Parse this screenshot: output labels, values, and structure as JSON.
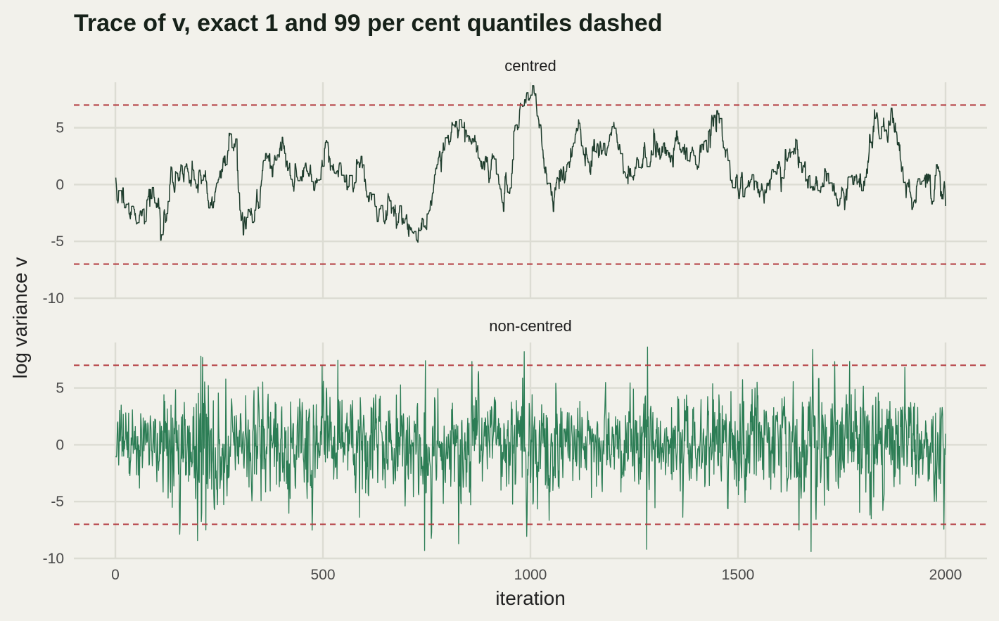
{
  "chart_data": {
    "type": "line",
    "title": "Trace of v, exact 1 and 99 per cent quantiles dashed",
    "xlabel": "iteration",
    "ylabel": "log variance v",
    "x_range": [
      1,
      2000
    ],
    "xlim": [
      -100,
      2100
    ],
    "x_ticks": [
      0,
      500,
      1000,
      1500,
      2000
    ],
    "y_ticks": [
      -10,
      -5,
      0,
      5
    ],
    "grid": true,
    "legend": "none",
    "quantile_lines": [
      -7,
      7
    ],
    "colors": {
      "background": "#f2f1eb",
      "grid": "#dcdcd3",
      "quantile_line": "#b3393e",
      "centred": "#1f3d2d",
      "non_centred": "#2c7d55"
    },
    "panels": [
      {
        "label": "centred",
        "ylim": [
          -10,
          9
        ],
        "color": "#1f3d2d",
        "trace_style": "slowly mixing random walk",
        "anchors": [
          [
            1,
            0.8
          ],
          [
            30,
            -2.2
          ],
          [
            55,
            -2.6
          ],
          [
            75,
            -2.1
          ],
          [
            90,
            0.8
          ],
          [
            110,
            -2.3
          ],
          [
            125,
            -2.3
          ],
          [
            145,
            0.5
          ],
          [
            175,
            1.5
          ],
          [
            205,
            0.8
          ],
          [
            230,
            -0.5
          ],
          [
            245,
            1.8
          ],
          [
            265,
            2.2
          ],
          [
            275,
            4.8
          ],
          [
            290,
            3.2
          ],
          [
            300,
            -1.8
          ],
          [
            325,
            -2.2
          ],
          [
            345,
            -2.1
          ],
          [
            360,
            2.0
          ],
          [
            385,
            3.0
          ],
          [
            410,
            1.6
          ],
          [
            430,
            -0.8
          ],
          [
            455,
            1.5
          ],
          [
            480,
            0.5
          ],
          [
            510,
            2.5
          ],
          [
            545,
            1.0
          ],
          [
            570,
            1.4
          ],
          [
            590,
            2.5
          ],
          [
            605,
            -0.6
          ],
          [
            620,
            -0.9
          ],
          [
            650,
            -1.5
          ],
          [
            680,
            -2.8
          ],
          [
            700,
            -3.0
          ],
          [
            730,
            -2.8
          ],
          [
            745,
            -2.4
          ],
          [
            755,
            -2.0
          ],
          [
            770,
            0.3
          ],
          [
            790,
            2.3
          ],
          [
            810,
            3.8
          ],
          [
            840,
            4.7
          ],
          [
            860,
            3.5
          ],
          [
            880,
            3.2
          ],
          [
            905,
            1.0
          ],
          [
            930,
            -0.2
          ],
          [
            950,
            1.2
          ],
          [
            965,
            5.5
          ],
          [
            985,
            7.5
          ],
          [
            1010,
            6.8
          ],
          [
            1025,
            4.0
          ],
          [
            1040,
            -0.5
          ],
          [
            1055,
            -1.5
          ],
          [
            1075,
            -0.3
          ],
          [
            1095,
            1.2
          ],
          [
            1110,
            4.2
          ],
          [
            1145,
            2.5
          ],
          [
            1180,
            3.5
          ],
          [
            1210,
            3.8
          ],
          [
            1240,
            1.5
          ],
          [
            1270,
            3.0
          ],
          [
            1300,
            3.2
          ],
          [
            1330,
            2.5
          ],
          [
            1360,
            3.8
          ],
          [
            1400,
            2.2
          ],
          [
            1425,
            4.5
          ],
          [
            1450,
            6.3
          ],
          [
            1468,
            4.5
          ],
          [
            1485,
            2.0
          ],
          [
            1500,
            0.3
          ],
          [
            1540,
            0.5
          ],
          [
            1580,
            0.1
          ],
          [
            1605,
            0.5
          ],
          [
            1625,
            2.8
          ],
          [
            1650,
            1.8
          ],
          [
            1680,
            0.8
          ],
          [
            1710,
            0.3
          ],
          [
            1745,
            -1.4
          ],
          [
            1775,
            0.5
          ],
          [
            1800,
            1.8
          ],
          [
            1830,
            3.5
          ],
          [
            1850,
            5.5
          ],
          [
            1870,
            3.8
          ],
          [
            1890,
            2.7
          ],
          [
            1905,
            0.3
          ],
          [
            1935,
            0.0
          ],
          [
            1965,
            -0.8
          ],
          [
            2000,
            -0.4
          ]
        ]
      },
      {
        "label": "non-centred",
        "ylim": [
          -10,
          9
        ],
        "color": "#2c7d55",
        "trace_style": "rapidly mixing, noisy around 0 (range about -9.3 to 8.4)",
        "volatility_profile": [
          [
            1,
            1.4
          ],
          [
            100,
            2.0
          ],
          [
            200,
            3.3
          ],
          [
            240,
            2.8
          ],
          [
            300,
            2.0
          ],
          [
            380,
            2.7
          ],
          [
            460,
            2.4
          ],
          [
            540,
            2.3
          ],
          [
            620,
            2.4
          ],
          [
            700,
            2.2
          ],
          [
            780,
            1.9
          ],
          [
            860,
            2.1
          ],
          [
            940,
            2.2
          ],
          [
            990,
            3.0
          ],
          [
            1060,
            2.1
          ],
          [
            1140,
            1.8
          ],
          [
            1220,
            2.0
          ],
          [
            1290,
            2.6
          ],
          [
            1360,
            2.2
          ],
          [
            1440,
            2.5
          ],
          [
            1520,
            2.7
          ],
          [
            1600,
            2.6
          ],
          [
            1670,
            3.3
          ],
          [
            1720,
            2.6
          ],
          [
            1800,
            2.4
          ],
          [
            1880,
            2.6
          ],
          [
            1960,
            2.4
          ],
          [
            2000,
            2.3
          ]
        ],
        "extremes": [
          [
            206,
            7.8
          ],
          [
            218,
            -7.5
          ],
          [
            745,
            -9.3
          ],
          [
            747,
            7.4
          ],
          [
            985,
            8.2
          ],
          [
            1282,
            8.6
          ],
          [
            1280,
            -9.2
          ],
          [
            1680,
            8.4
          ],
          [
            1676,
            -9.4
          ]
        ]
      }
    ]
  }
}
